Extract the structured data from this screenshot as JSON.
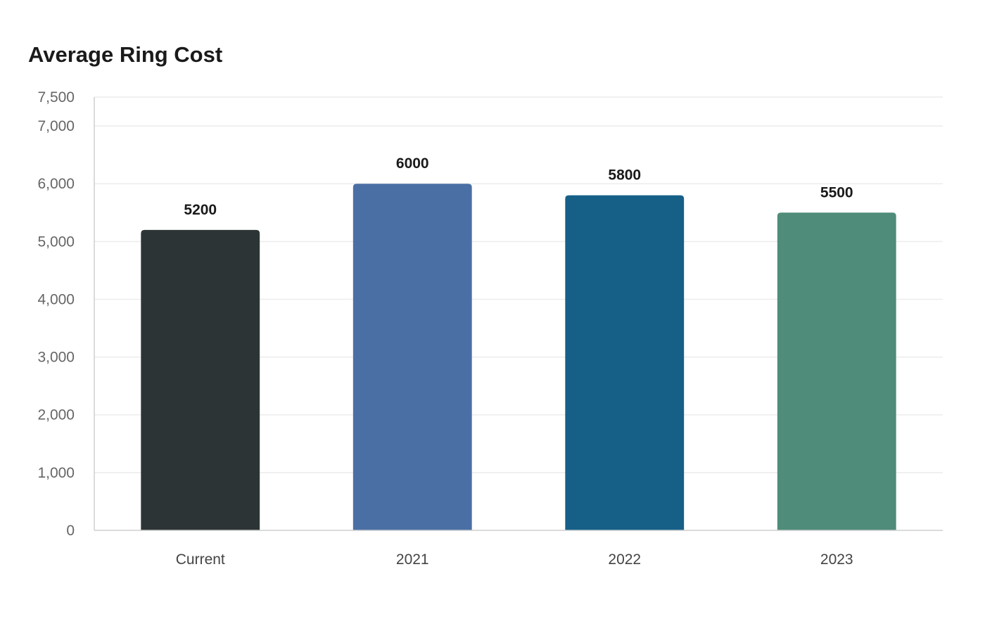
{
  "chart_data": {
    "type": "bar",
    "title": "Average Ring Cost",
    "categories": [
      "Current",
      "2021",
      "2022",
      "2023"
    ],
    "values": [
      5200,
      6000,
      5800,
      5500
    ],
    "colors": [
      "#2d3436",
      "#4a6fa5",
      "#166088",
      "#4f8c7a"
    ],
    "ylim": [
      0,
      7500
    ],
    "yticks": [
      0,
      1000,
      2000,
      3000,
      4000,
      5000,
      6000,
      7000,
      7500
    ],
    "ytick_labels": [
      "0",
      "1,000",
      "2,000",
      "3,000",
      "4,000",
      "5,000",
      "6,000",
      "7,000",
      "7,500"
    ],
    "data_labels": [
      "5200",
      "6000",
      "5800",
      "5500"
    ],
    "xlabel": "",
    "ylabel": "",
    "grid": true,
    "legend": false
  }
}
